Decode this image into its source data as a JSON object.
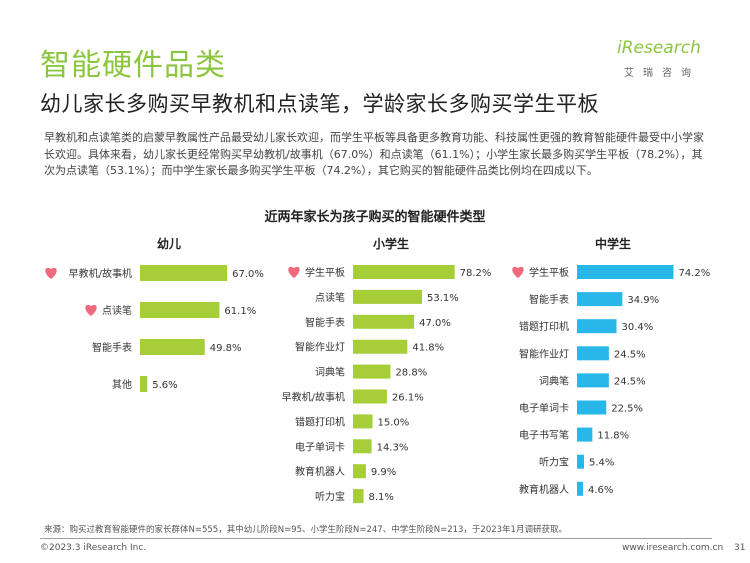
{
  "header": {
    "section_title": "智能硬件品类",
    "logo_text": "iResearch",
    "logo_sub": "艾瑞咨询",
    "headline": "幼儿家长多购买早教机和点读笔，学龄家长多购买学生平板"
  },
  "body_text": "早教机和点读笔类的启蒙早教属性产品最受幼儿家长欢迎，而学生平板等具备更多教育功能、科技属性更强的教育智能硬件最受中小学家长欢迎。具体来看，幼儿家长更经常购买早幼教机/故事机（67.0%）和点读笔（61.1%）；小学生家长最多购买学生平板（78.2%），其次为点读笔（53.1%）；而中学生家长最多购买学生平板（74.2%），其它购买的智能硬件品类比例均在四成以下。",
  "chart_data": {
    "type": "bar",
    "title": "近两年家长为孩子购买的智能硬件类型",
    "orientation": "horizontal",
    "unit": "%",
    "panels": [
      {
        "name": "幼儿",
        "color": "#a6ce39",
        "categories": [
          "早教机/故事机",
          "点读笔",
          "智能手表",
          "其他"
        ],
        "values": [
          67.0,
          61.1,
          49.8,
          5.6
        ],
        "labels": [
          "67.0%",
          "61.1%",
          "49.8%",
          "5.6%"
        ],
        "highlight": [
          true,
          true,
          false,
          false
        ]
      },
      {
        "name": "小学生",
        "color": "#a6ce39",
        "categories": [
          "学生平板",
          "点读笔",
          "智能手表",
          "智能作业灯",
          "词典笔",
          "早教机/故事机",
          "错题打印机",
          "电子单词卡",
          "教育机器人",
          "听力宝"
        ],
        "values": [
          78.2,
          53.1,
          47.0,
          41.8,
          28.8,
          26.1,
          15.0,
          14.3,
          9.9,
          8.1
        ],
        "labels": [
          "78.2%",
          "53.1%",
          "47.0%",
          "41.8%",
          "28.8%",
          "26.1%",
          "15.0%",
          "14.3%",
          "9.9%",
          "8.1%"
        ],
        "highlight": [
          true,
          false,
          false,
          false,
          false,
          false,
          false,
          false,
          false,
          false
        ]
      },
      {
        "name": "中学生",
        "color": "#29b6e8",
        "categories": [
          "学生平板",
          "智能手表",
          "错题打印机",
          "智能作业灯",
          "词典笔",
          "电子单词卡",
          "电子书写笔",
          "听力宝",
          "教育机器人"
        ],
        "values": [
          74.2,
          34.9,
          30.4,
          24.5,
          24.5,
          22.5,
          11.8,
          5.4,
          4.6
        ],
        "labels": [
          "74.2%",
          "34.9%",
          "30.4%",
          "24.5%",
          "24.5%",
          "22.5%",
          "11.8%",
          "5.4%",
          "4.6%"
        ],
        "highlight": [
          true,
          false,
          false,
          false,
          false,
          false,
          false,
          false,
          false
        ]
      }
    ],
    "highlight_color": "#f06a7c"
  },
  "footer": {
    "source": "来源：购买过教育智能硬件的家长群体N=555，其中幼儿阶段N=95、小学生阶段N=247、中学生阶段N=213，于2023年1月调研获取。",
    "copyright": "©2023.3 iResearch Inc.",
    "website": "www.iresearch.com.cn",
    "page_number": "31"
  }
}
